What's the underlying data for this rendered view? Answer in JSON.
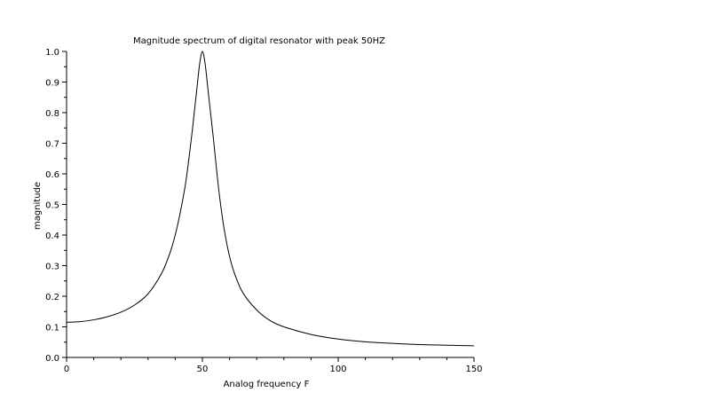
{
  "chart_data": {
    "type": "line",
    "title": "Magnitude spectrum of digital resonator with peak 50HZ",
    "xlabel": "Analog frequency F",
    "ylabel": "magnitude",
    "xlim": [
      0,
      150
    ],
    "ylim": [
      0,
      1
    ],
    "x_ticks": [
      0,
      50,
      100,
      150
    ],
    "y_ticks": [
      "0.0",
      "0.1",
      "0.2",
      "0.3",
      "0.4",
      "0.5",
      "0.6",
      "0.7",
      "0.8",
      "0.9",
      "1.0"
    ],
    "grid": false,
    "series": [
      {
        "x": [
          0,
          5,
          10,
          15,
          20,
          25,
          30,
          35,
          38,
          40,
          42,
          44,
          46,
          47,
          48,
          49,
          50,
          51,
          52,
          53,
          54,
          56,
          58,
          60,
          62,
          65,
          70,
          75,
          80,
          90,
          100,
          110,
          120,
          130,
          140,
          150
        ],
        "y": [
          0.115,
          0.117,
          0.123,
          0.133,
          0.148,
          0.171,
          0.208,
          0.275,
          0.34,
          0.4,
          0.48,
          0.58,
          0.72,
          0.8,
          0.88,
          0.96,
          1.0,
          0.96,
          0.88,
          0.8,
          0.72,
          0.55,
          0.42,
          0.33,
          0.27,
          0.21,
          0.155,
          0.12,
          0.1,
          0.075,
          0.06,
          0.051,
          0.046,
          0.042,
          0.04,
          0.038
        ]
      }
    ]
  }
}
